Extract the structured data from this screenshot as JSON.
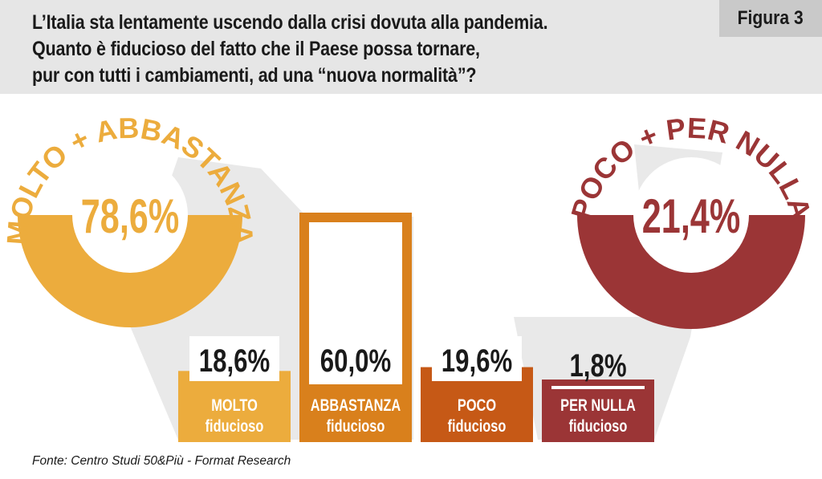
{
  "title": "L’Italia sta lentamente uscendo dalla crisi dovuta alla pandemia.\nQuanto è fiducioso del fatto che il Paese possa tornare,\npur con tutti i cambiamenti, ad una “nuova normalità”?",
  "figure_label": "Figura 3",
  "source": "Fonte: Centro Studi 50&Più - Format Research",
  "colors": {
    "molto": "#ecac3d",
    "abbastanza": "#d9801c",
    "poco": "#c65916",
    "per_nulla": "#9b3536",
    "positive_ring": "#ecac3d",
    "negative_ring": "#9b3536"
  },
  "chart_data": {
    "type": "bar",
    "categories": [
      "MOLTO fiducioso",
      "ABBASTANZA fiducioso",
      "POCO fiducioso",
      "PER NULLA fiducioso"
    ],
    "values": [
      18.6,
      60.0,
      19.6,
      1.8
    ],
    "value_labels": [
      "18,6%",
      "60,0%",
      "19,6%",
      "1,8%"
    ],
    "category_lines": [
      [
        "MOLTO",
        "fiducioso"
      ],
      [
        "ABBASTANZA",
        "fiducioso"
      ],
      [
        "POCO",
        "fiducioso"
      ],
      [
        "PER NULLA",
        "fiducioso"
      ]
    ],
    "ylim": [
      0,
      60
    ],
    "groups": [
      {
        "label": "MOLTO + ABBASTANZA",
        "value": 78.6,
        "value_label": "78,6%"
      },
      {
        "label": "POCO + PER NULLA",
        "value": 21.4,
        "value_label": "21,4%"
      }
    ]
  }
}
